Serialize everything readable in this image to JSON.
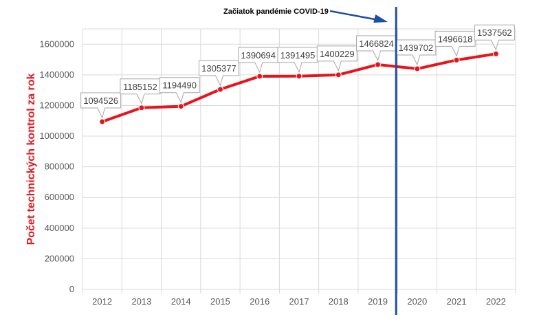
{
  "chart_data": {
    "type": "line",
    "title": "",
    "xlabel": "",
    "ylabel": "Počet technických kontrol za rok",
    "categories": [
      "2012",
      "2013",
      "2014",
      "2015",
      "2016",
      "2017",
      "2018",
      "2019",
      "2020",
      "2021",
      "2022"
    ],
    "series": [
      {
        "values": [
          1094526,
          1185152,
          1194490,
          1305377,
          1390694,
          1391495,
          1400229,
          1466824,
          1439702,
          1496618,
          1537562
        ],
        "data_labels": [
          "1094526",
          "1185152",
          "1194490",
          "1305377",
          "1390694",
          "1391495",
          "1400229",
          "1466824",
          "1439702",
          "1496618",
          "1537562"
        ],
        "color": "#e8141c"
      }
    ],
    "ylim": [
      0,
      1700000
    ],
    "yticks": [
      0,
      200000,
      400000,
      600000,
      800000,
      1000000,
      1200000,
      1400000,
      1600000
    ],
    "ytick_labels": [
      "0",
      "200000",
      "400000",
      "600000",
      "800000",
      "1000000",
      "1200000",
      "1400000",
      "1600000"
    ],
    "grid": true,
    "legend": "none",
    "annotations": [
      {
        "text": "Začiatok pandémie COVID-19",
        "marks_between": [
          "2019",
          "2020"
        ],
        "color": "#1f4fa3"
      }
    ],
    "ylabel_color": "#e8141c",
    "grid_color": "#d9d9d9"
  }
}
